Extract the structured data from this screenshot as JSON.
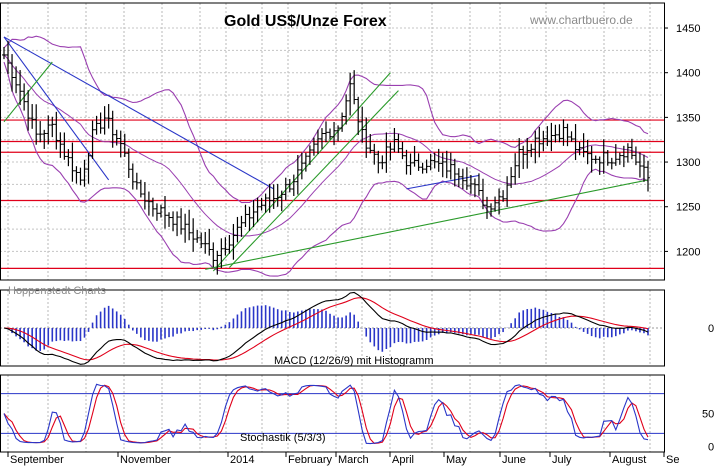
{
  "chart_data": [
    {
      "type": "line",
      "subtype": "ohlc-with-bollinger-bands",
      "title": "Gold US$/Unze Forex",
      "source_url": "www.chartbuero.de",
      "source_label": "Hoppenstedt Charts",
      "xlabel": "",
      "ylabel": "",
      "ylim": [
        1168,
        1478
      ],
      "yticks": [
        1200,
        1250,
        1300,
        1350,
        1400,
        1450
      ],
      "grid": true,
      "x_labels": [
        "September",
        "November",
        "2014",
        "February",
        "March",
        "April",
        "May",
        "June",
        "July",
        "August",
        "Se"
      ],
      "colors": {
        "price": "#000000",
        "bollinger": "#9a3fb0",
        "support_resistance": "#e0001a",
        "trend_down": "#2a36c8",
        "trend_up": "#2a9a2a"
      },
      "horizontal_levels": [
        1347,
        1323,
        1311,
        1257,
        1181
      ],
      "price_anchors": [
        {
          "t": 0,
          "v": 1420
        },
        {
          "t": 4,
          "v": 1380
        },
        {
          "t": 8,
          "v": 1330
        },
        {
          "t": 12,
          "v": 1340
        },
        {
          "t": 15,
          "v": 1310
        },
        {
          "t": 19,
          "v": 1280
        },
        {
          "t": 22,
          "v": 1330
        },
        {
          "t": 25,
          "v": 1350
        },
        {
          "t": 29,
          "v": 1320
        },
        {
          "t": 33,
          "v": 1270
        },
        {
          "t": 37,
          "v": 1250
        },
        {
          "t": 41,
          "v": 1240
        },
        {
          "t": 45,
          "v": 1225
        },
        {
          "t": 49,
          "v": 1210
        },
        {
          "t": 52,
          "v": 1195
        },
        {
          "t": 55,
          "v": 1208
        },
        {
          "t": 59,
          "v": 1230
        },
        {
          "t": 63,
          "v": 1250
        },
        {
          "t": 67,
          "v": 1260
        },
        {
          "t": 71,
          "v": 1275
        },
        {
          "t": 75,
          "v": 1300
        },
        {
          "t": 79,
          "v": 1330
        },
        {
          "t": 83,
          "v": 1340
        },
        {
          "t": 86,
          "v": 1385
        },
        {
          "t": 89,
          "v": 1330
        },
        {
          "t": 93,
          "v": 1300
        },
        {
          "t": 97,
          "v": 1320
        },
        {
          "t": 101,
          "v": 1295
        },
        {
          "t": 105,
          "v": 1300
        },
        {
          "t": 109,
          "v": 1295
        },
        {
          "t": 113,
          "v": 1290
        },
        {
          "t": 117,
          "v": 1270
        },
        {
          "t": 120,
          "v": 1250
        },
        {
          "t": 124,
          "v": 1265
        },
        {
          "t": 128,
          "v": 1310
        },
        {
          "t": 132,
          "v": 1325
        },
        {
          "t": 136,
          "v": 1330
        },
        {
          "t": 139,
          "v": 1335
        },
        {
          "t": 143,
          "v": 1310
        },
        {
          "t": 147,
          "v": 1305
        },
        {
          "t": 151,
          "v": 1305
        },
        {
          "t": 155,
          "v": 1315
        },
        {
          "t": 158,
          "v": 1295
        },
        {
          "t": 160,
          "v": 1282
        }
      ]
    },
    {
      "type": "line",
      "subtype": "macd-with-histogram",
      "label": "MACD (12/26/9) mit Histogramm",
      "ylim": [
        -32,
        32
      ],
      "yticks": [
        0
      ],
      "colors": {
        "macd": "#000000",
        "signal": "#e0001a",
        "histogram": "#2a36c8"
      }
    },
    {
      "type": "line",
      "subtype": "stochastic",
      "label": "Stochastik (5/3/3)",
      "ylim": [
        -8,
        108
      ],
      "yticks": [
        0,
        50
      ],
      "colors": {
        "k": "#2a36c8",
        "d": "#e0001a",
        "bands": "#2a36c8"
      }
    }
  ]
}
